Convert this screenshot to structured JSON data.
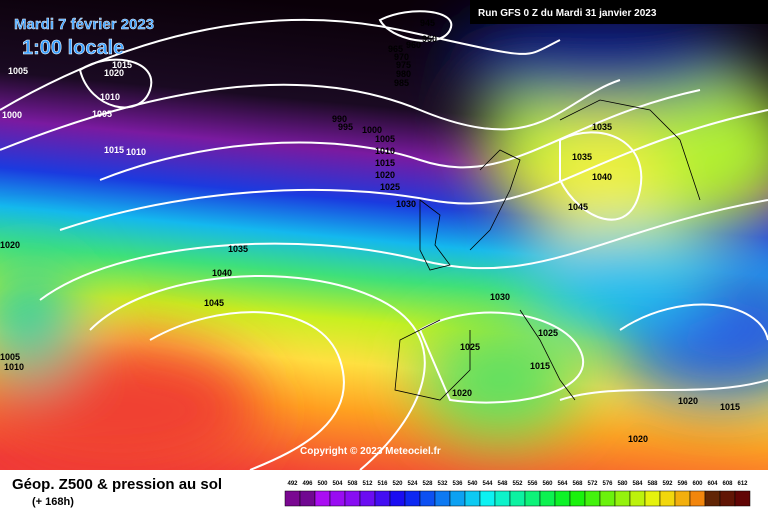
{
  "header": {
    "title": "Mardi 7 février 2023",
    "subtitle": "1:00 locale",
    "run": "Run GFS 0 Z du Mardi 31 janvier 2023"
  },
  "map": {
    "copyright": "Copyright © 2023 Meteociel.fr",
    "isobar_labels": [
      "945",
      "950",
      "965",
      "960",
      "970",
      "975",
      "980",
      "985",
      "1015",
      "1020",
      "1005",
      "1010",
      "1000",
      "1005",
      "1015",
      "1010",
      "990",
      "995",
      "1000",
      "1005",
      "1010",
      "1015",
      "1020",
      "1025",
      "1030",
      "1035",
      "1040",
      "1045",
      "1035",
      "1035",
      "1040",
      "1045",
      "1020",
      "1005",
      "1010",
      "1030",
      "1025",
      "1025",
      "1015",
      "1020",
      "1020",
      "1015",
      "1020"
    ]
  },
  "footer": {
    "title": "Géop. Z500 & pression au sol",
    "lead": "(+ 168h)",
    "scale": [
      492,
      496,
      500,
      504,
      508,
      512,
      516,
      520,
      524,
      528,
      532,
      536,
      540,
      544,
      548,
      552,
      556,
      560,
      564,
      568,
      572,
      576,
      580,
      584,
      588,
      592,
      596,
      600,
      604,
      608,
      612
    ]
  }
}
